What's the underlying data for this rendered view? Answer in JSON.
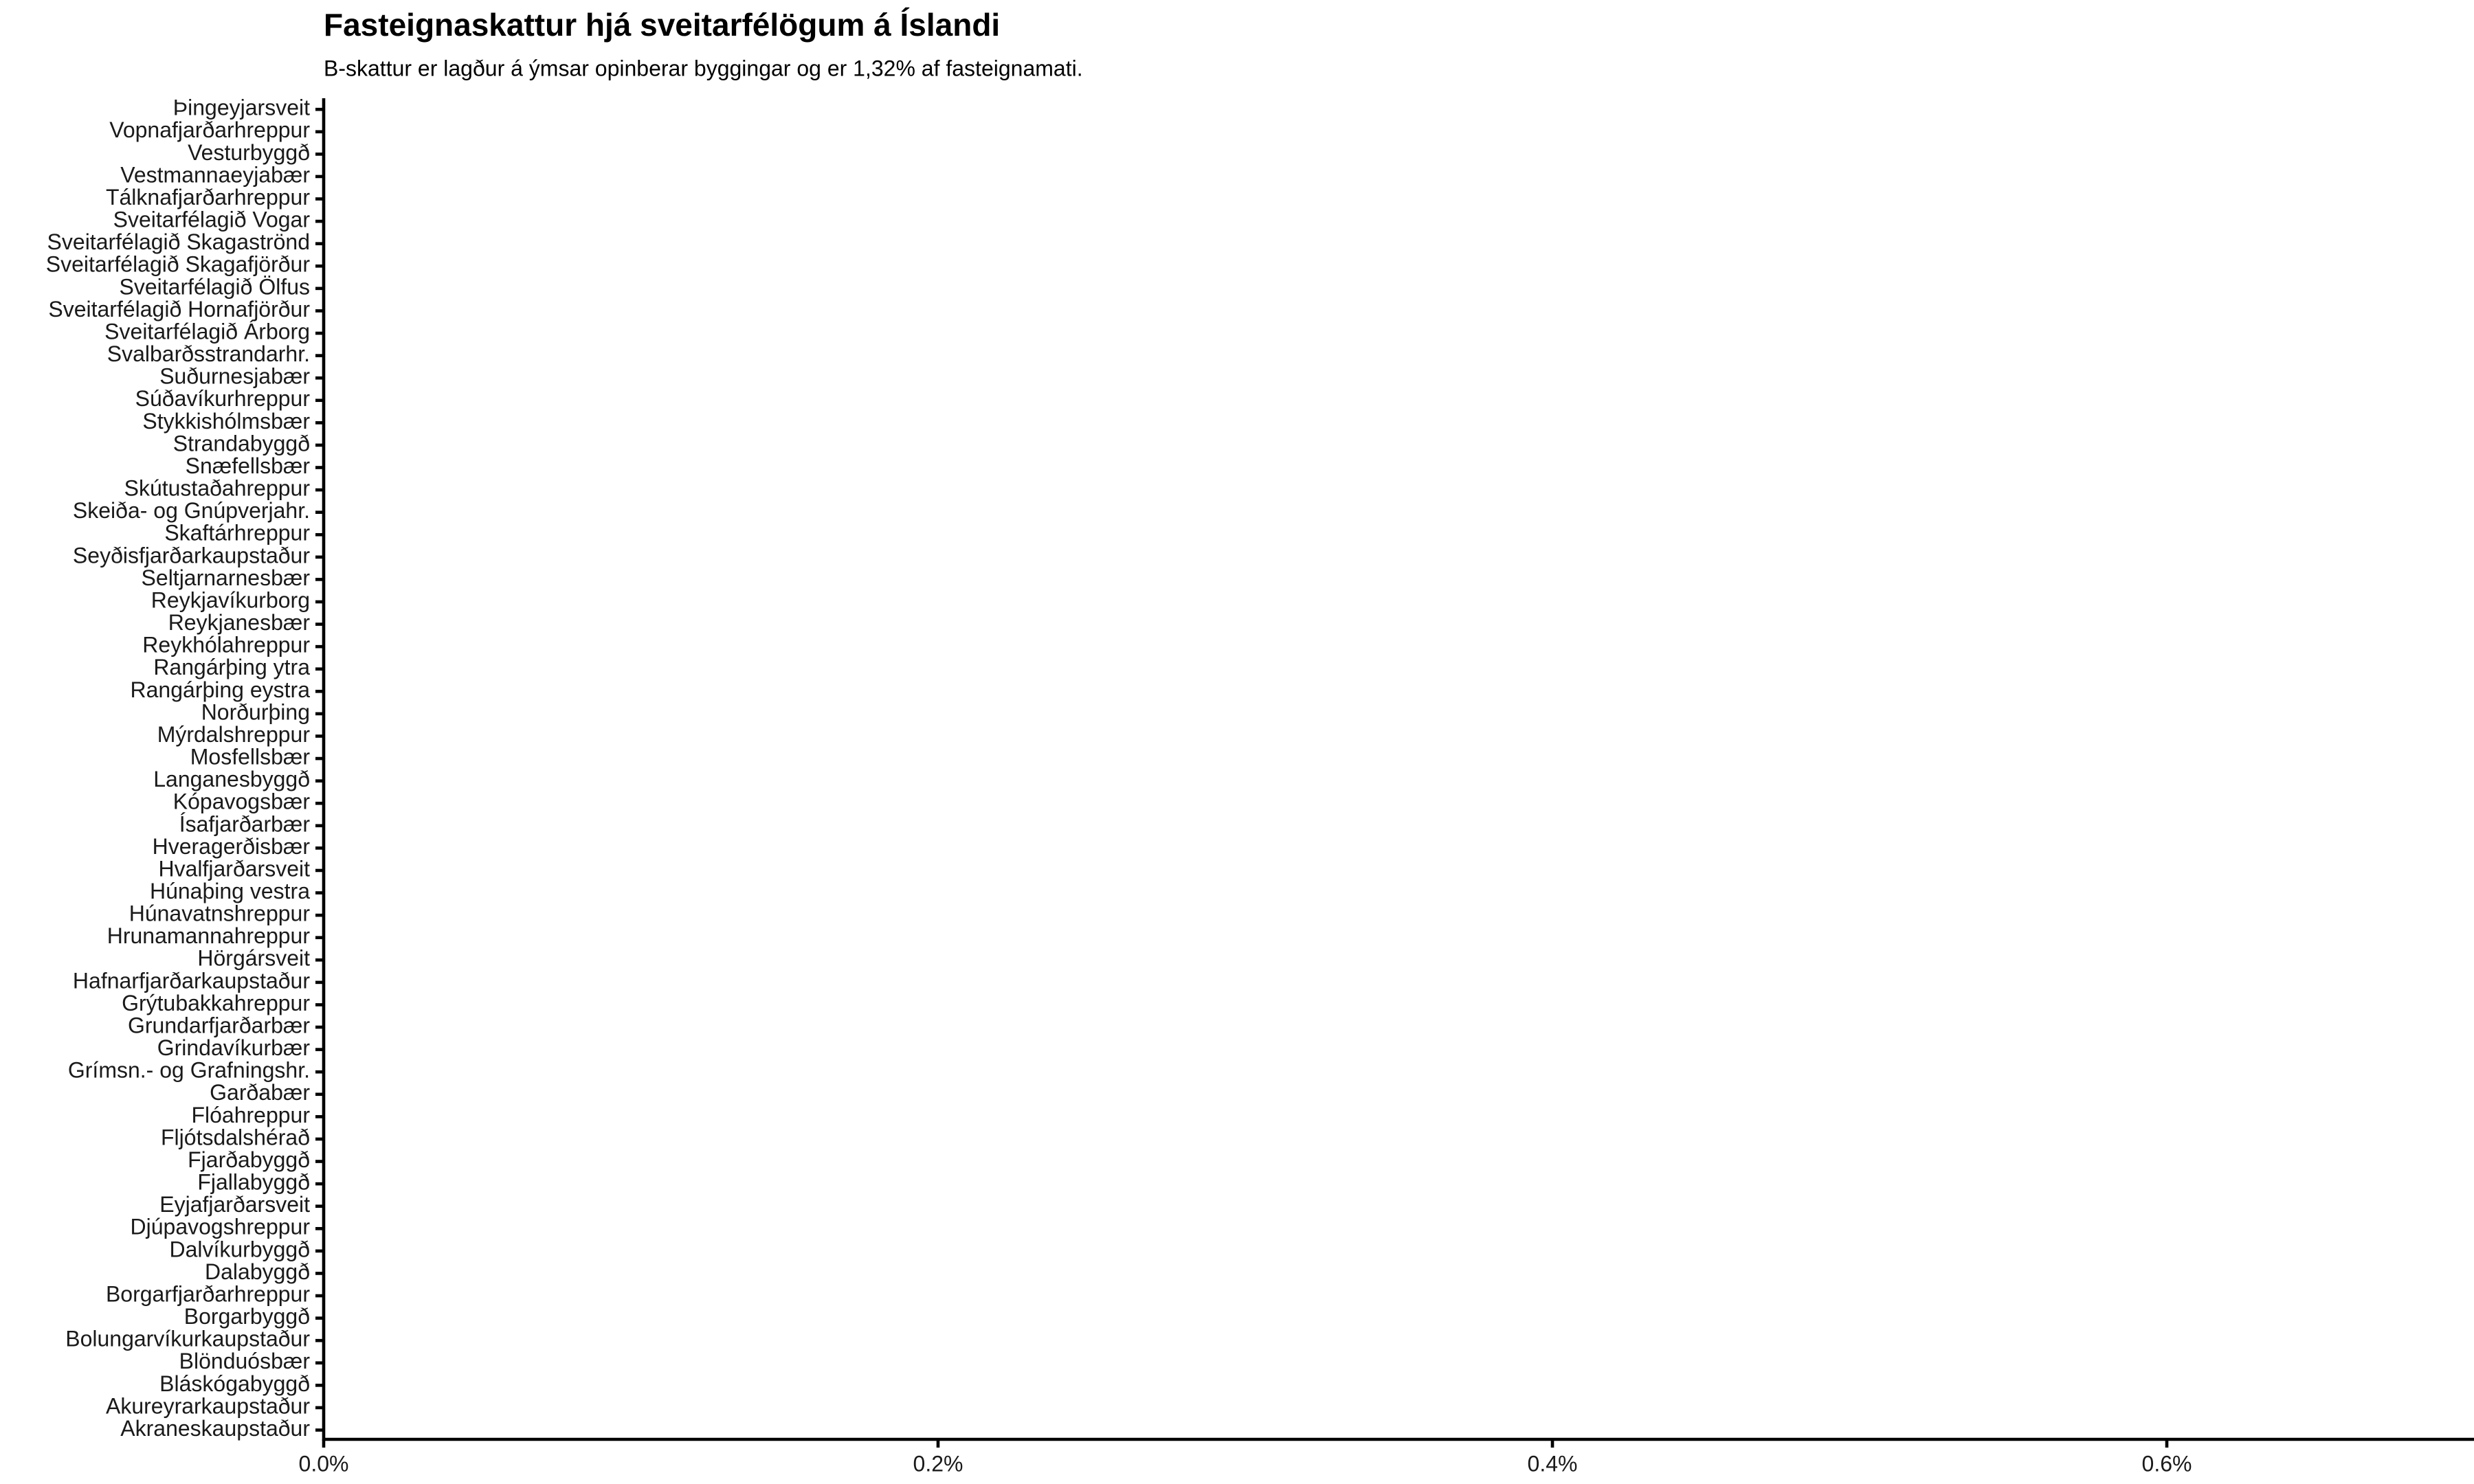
{
  "chart_data": {
    "type": "bar",
    "orientation": "horizontal",
    "title": "Fasteignaskattur hjá sveitarfélögum á Íslandi",
    "subtitle": "B-skattur er lagður á ýmsar opinberar byggingar og er 1,32% af fasteignamati.",
    "categories": [
      "Akraneskaupstaður",
      "Akureyrarkaupstaður",
      "Bláskógabyggð",
      "Blönduósbær",
      "Bolungarvíkurkaupstaður",
      "Borgarbyggð",
      "Borgarfjarðarhreppur",
      "Dalabyggð",
      "Dalvíkurbyggð",
      "Djúpavogshreppur",
      "Eyjafjarðarsveit",
      "Fjallabyggð",
      "Fjarðabyggð",
      "Fljótsdalshérað",
      "Flóahreppur",
      "Garðabær",
      "Grímsn.- og Grafningshr.",
      "Grindavíkurbær",
      "Grundarfjarðarbær",
      "Grýtubakkahreppur",
      "Hafnarfjarðarkaupstaður",
      "Hörgársveit",
      "Hrunamannahreppur",
      "Húnavatnshreppur",
      "Húnaþing vestra",
      "Hvalfjarðarsveit",
      "Hveragerðisbær",
      "Ísafjarðarbær",
      "Kópavogsbær",
      "Langanesbyggð",
      "Mosfellsbær",
      "Mýrdalshreppur",
      "Norðurþing",
      "Rangárþing eystra",
      "Rangárþing ytra",
      "Reykhólahreppur",
      "Reykjanesbær",
      "Reykjavíkurborg",
      "Seltjarnarnesbær",
      "Seyðisfjarðarkaupstaður",
      "Skaftárhreppur",
      "Skeiða- og Gnúpverjahr.",
      "Skútustaðahreppur",
      "Snæfellsbær",
      "Strandabyggð",
      "Stykkishólmsbær",
      "Súðavíkurhreppur",
      "Suðurnesjabær",
      "Svalbarðsstrandarhr.",
      "Sveitarfélagið Árborg",
      "Sveitarfélagið Hornafjörður",
      "Sveitarfélagið Ölfus",
      "Sveitarfélagið Skagafjörður",
      "Sveitarfélagið Skagaströnd",
      "Sveitarfélagið Vogar",
      "Tálknafjarðarhreppur",
      "Vestmannaeyjabær",
      "Vesturbyggð",
      "Vopnafjarðarhreppur",
      "Þingeyjarsveit"
    ],
    "xlim": [
      0,
      0.7
    ],
    "xticks": [
      {
        "value": 0,
        "label": "0.0%"
      },
      {
        "value": 0.2,
        "label": "0.2%"
      },
      {
        "value": 0.4,
        "label": "0.4%"
      },
      {
        "value": 0.6,
        "label": "0.6%"
      }
    ],
    "grid": false
  }
}
